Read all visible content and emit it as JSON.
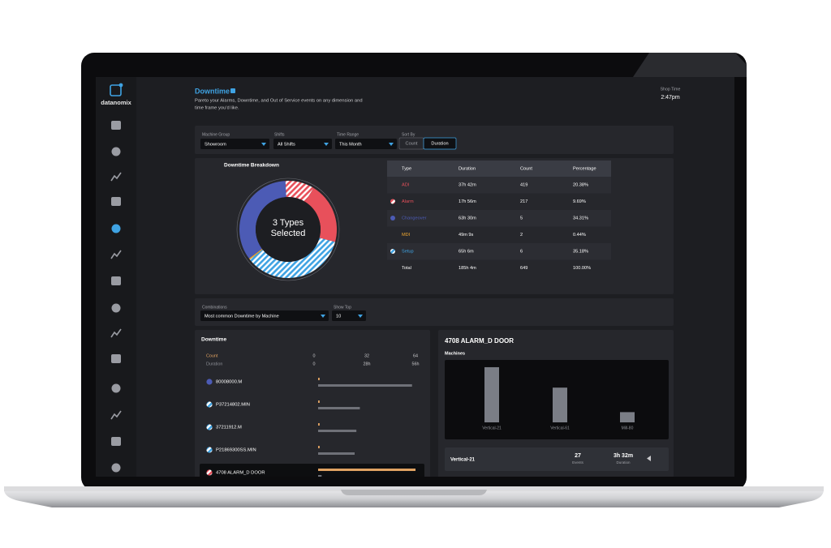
{
  "sidebar": {
    "logo": "datanomix"
  },
  "header": {
    "title": "Downtime",
    "subtitle_lines": [
      "Pareto your Alarms, Downtime, and Out of Service events on any dimension and",
      "time frame you'd like."
    ],
    "shop_time_label": "Shop Time",
    "shop_time": "2:47pm"
  },
  "filters": {
    "machine_group": {
      "label": "Machine Group",
      "value": "Showroom"
    },
    "shifts": {
      "label": "Shifts",
      "value": "All Shifts"
    },
    "time_range": {
      "label": "Time Range",
      "value": "This Month"
    },
    "sort_by": {
      "label": "Sort By",
      "options": [
        "Count",
        "Duration"
      ],
      "selected": "Duration"
    }
  },
  "breakdown": {
    "title": "Downtime Breakdown",
    "center_text_lines": [
      "3 Types",
      "Selected"
    ],
    "table": {
      "header": [
        "Type",
        "Duration",
        "Count",
        "Percentage"
      ],
      "rows": [
        {
          "type": "ADI",
          "duration": "37h 42m",
          "count": "419",
          "percentage": "20.38%",
          "color": "#e8505b",
          "pattern": "solid",
          "selected": false
        },
        {
          "type": "Alarm",
          "duration": "17h 56m",
          "count": "217",
          "percentage": "9.69%",
          "color": "#e8505b",
          "pattern": "striped",
          "selected": true
        },
        {
          "type": "Changeover",
          "duration": "63h 30m",
          "count": "5",
          "percentage": "34.31%",
          "color": "#4c5bb5",
          "pattern": "solid",
          "selected": true
        },
        {
          "type": "MDI",
          "duration": "49m 9s",
          "count": "2",
          "percentage": "0.44%",
          "color": "#f0a830",
          "pattern": "solid",
          "selected": false
        },
        {
          "type": "Setup",
          "duration": "65h 6m",
          "count": "6",
          "percentage": "35.18%",
          "color": "#3fa3e3",
          "pattern": "striped",
          "selected": true
        }
      ],
      "total": {
        "type": "Total",
        "duration": "185h 4m",
        "count": "649",
        "percentage": "100.00%"
      }
    }
  },
  "combinations": {
    "label": "Combinations",
    "value": "Most common Downtime by Machine",
    "show_top_label": "Show Top",
    "show_top_value": "10"
  },
  "downtime_list": {
    "title": "Downtime",
    "count_axis": {
      "label": "Count",
      "lim": [
        0,
        64
      ],
      "ticks": [
        0,
        32,
        64
      ],
      "color": "#e0a262"
    },
    "duration_axis": {
      "label": "Duration",
      "lim": [
        0,
        56
      ],
      "ticks": [
        0,
        {
          "value": 28,
          "label": "28h"
        },
        {
          "value": 56,
          "label": "56h"
        }
      ],
      "color": "#6f7178"
    },
    "rows": [
      {
        "name": "80008000.M",
        "count": 1,
        "duration": 54,
        "icon_color": "#4c5bb5",
        "icon_pattern": "solid"
      },
      {
        "name": "P37214802.MIN",
        "count": 1,
        "duration": 24,
        "icon_color": "#3fa3e3",
        "icon_pattern": "striped"
      },
      {
        "name": "37211912.M",
        "count": 1,
        "duration": 22,
        "icon_color": "#3fa3e3",
        "icon_pattern": "striped"
      },
      {
        "name": "P21869300SS.MIN",
        "count": 1,
        "duration": 21,
        "icon_color": "#3fa3e3",
        "icon_pattern": "striped"
      },
      {
        "name": "4708 ALARM_D DOOR",
        "count": 64,
        "duration": 2,
        "icon_color": "#e8505b",
        "icon_pattern": "striped"
      }
    ],
    "highlighted": "4708 ALARM_D DOOR"
  },
  "detail": {
    "title": "4708 ALARM_D DOOR",
    "subtitle": "Machines",
    "categories": [
      "Vertical-21",
      "Vertical-61",
      "Mill-80"
    ],
    "values": [
      27,
      17,
      5
    ],
    "ylim": [
      0,
      30
    ],
    "color": "#7b7e86",
    "summary": {
      "machine": "Vertical-21",
      "events": "27",
      "events_label": "Events",
      "duration": "3h 32m",
      "duration_label": "Duration"
    }
  }
}
